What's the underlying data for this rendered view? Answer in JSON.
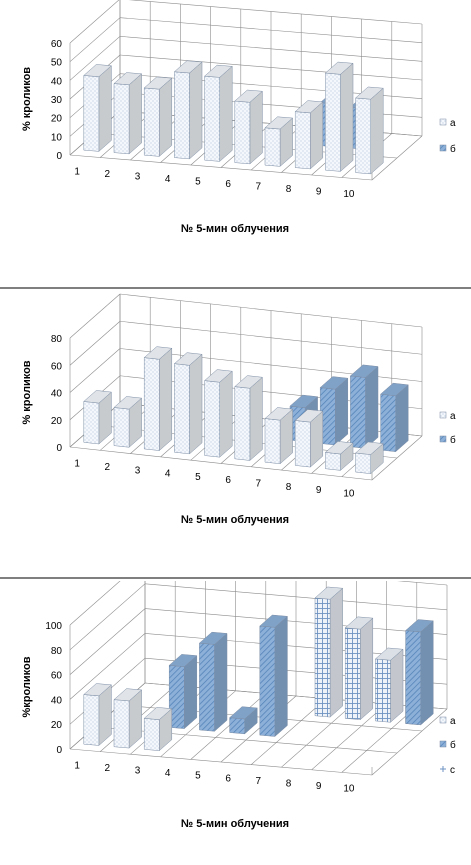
{
  "chart_data": [
    {
      "type": "bar",
      "subtype": "3d-clustered-column",
      "categories": [
        "1",
        "2",
        "3",
        "4",
        "5",
        "6",
        "7",
        "8",
        "9",
        "10"
      ],
      "series": [
        {
          "name": "а",
          "values": [
            40,
            37,
            36,
            46,
            45,
            33,
            20,
            30,
            52,
            40
          ]
        },
        {
          "name": "б",
          "values": [
            0,
            0,
            0,
            0,
            0,
            0,
            0,
            23,
            22,
            0
          ]
        }
      ],
      "xlabel": "№ 5-мин облучения",
      "ylabel": "% кроликов",
      "yticks": [
        "0",
        "10",
        "20",
        "30",
        "40",
        "50",
        "60"
      ],
      "ylim": [
        0,
        60
      ],
      "grid": true,
      "legend": "right"
    },
    {
      "type": "bar",
      "subtype": "3d-clustered-column",
      "categories": [
        "1",
        "2",
        "3",
        "4",
        "5",
        "6",
        "7",
        "8",
        "9",
        "10"
      ],
      "series": [
        {
          "name": "а",
          "values": [
            30,
            28,
            67,
            65,
            55,
            53,
            32,
            33,
            12,
            14
          ]
        },
        {
          "name": "б",
          "values": [
            0,
            0,
            0,
            0,
            0,
            0,
            25,
            41,
            52,
            41
          ]
        }
      ],
      "xlabel": "№ 5-мин облучения",
      "ylabel": "% кроликов",
      "yticks": [
        "0",
        "20",
        "40",
        "60",
        "80"
      ],
      "ylim": [
        0,
        80
      ],
      "grid": true,
      "legend": "right"
    },
    {
      "type": "bar",
      "subtype": "3d-clustered-column",
      "categories": [
        "1",
        "2",
        "3",
        "4",
        "5",
        "6",
        "7",
        "8",
        "9",
        "10"
      ],
      "series": [
        {
          "name": "а",
          "values": [
            40,
            38,
            25,
            0,
            0,
            0,
            0,
            0,
            0,
            0
          ]
        },
        {
          "name": "б",
          "values": [
            0,
            0,
            50,
            70,
            12,
            88,
            0,
            0,
            0,
            0
          ]
        },
        {
          "name": "с",
          "values": [
            0,
            0,
            0,
            0,
            0,
            0,
            95,
            73,
            50,
            62
          ]
        }
      ],
      "extra_series_visual": {
        "б_extra": [
          0,
          0,
          0,
          0,
          0,
          0,
          0,
          0,
          0,
          75
        ]
      },
      "xlabel": "№ 5-мин облучения",
      "ylabel": "%кроликов",
      "yticks": [
        "0",
        "20",
        "40",
        "60",
        "80",
        "100"
      ],
      "ylim": [
        0,
        100
      ],
      "grid": true,
      "legend": "right"
    }
  ],
  "colors": {
    "series_a_fill": "#f4f7fb",
    "series_a_dot": "#9db3cf",
    "series_b_fill": "#8cb0d8",
    "series_b_hatch": "#4f7fb5",
    "series_c_fill": "#eef3fa",
    "series_c_line": "#6e93c2",
    "grid": "#8c8c8c",
    "separator": "#7f7f7f"
  }
}
